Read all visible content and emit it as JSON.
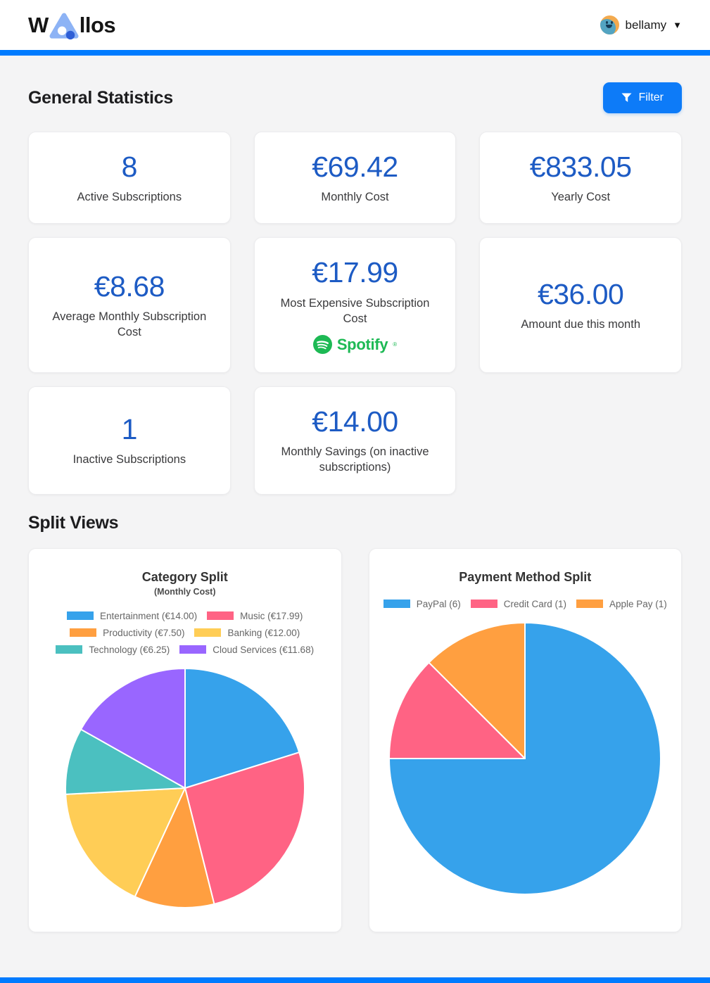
{
  "header": {
    "logo_prefix": "W",
    "logo_suffix": "llos",
    "username": "bellamy",
    "caret": "▼"
  },
  "general_statistics": {
    "title": "General Statistics",
    "filter_label": "Filter",
    "cards": [
      {
        "value": "8",
        "label": "Active Subscriptions"
      },
      {
        "value": "€69.42",
        "label": "Monthly Cost"
      },
      {
        "value": "€833.05",
        "label": "Yearly Cost"
      },
      {
        "value": "€8.68",
        "label": "Average Monthly Subscription Cost"
      },
      {
        "value": "€17.99",
        "label": "Most Expensive Subscription Cost",
        "brand": "Spotify",
        "brand_reg": "®"
      },
      {
        "value": "€36.00",
        "label": "Amount due this month"
      },
      {
        "value": "1",
        "label": "Inactive Subscriptions"
      },
      {
        "value": "€14.00",
        "label": "Monthly Savings (on inactive subscriptions)"
      }
    ]
  },
  "split_views": {
    "title": "Split Views"
  },
  "chart_data": [
    {
      "type": "pie",
      "title": "Category Split",
      "subtitle": "(Monthly Cost)",
      "legend_position": "top",
      "labels": [
        "Entertainment (€14.00)",
        "Music (€17.99)",
        "Productivity (€7.50)",
        "Banking (€12.00)",
        "Technology (€6.25)",
        "Cloud Services (€11.68)"
      ],
      "values": [
        14.0,
        17.99,
        7.5,
        12.0,
        6.25,
        11.68
      ],
      "colors": [
        "#36A2EB",
        "#FF6384",
        "#FF9F40",
        "#FFCD56",
        "#4BC0C0",
        "#9966FF"
      ],
      "total": 69.42
    },
    {
      "type": "pie",
      "title": "Payment Method Split",
      "legend_position": "top",
      "labels": [
        "PayPal (6)",
        "Credit Card (1)",
        "Apple Pay (1)"
      ],
      "values": [
        6,
        1,
        1
      ],
      "colors": [
        "#36A2EB",
        "#FF6384",
        "#FF9F40"
      ],
      "total": 8
    }
  ],
  "theme": {
    "accent_blue": "#007bff",
    "stat_value_blue": "#1d5bc4",
    "spotify_green": "#1DB954",
    "logo_light_blue": "#8db3f5",
    "logo_dark_blue": "#2e5ed6"
  }
}
